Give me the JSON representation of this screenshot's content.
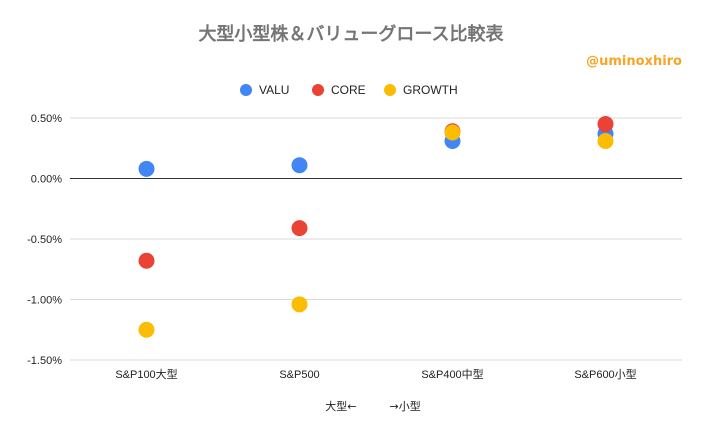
{
  "chart_data": {
    "type": "scatter",
    "title": "大型小型株＆バリューグロース比較表",
    "watermark": "@uminoxhiro",
    "categories": [
      "S&P100大型",
      "S&P500",
      "S&P400中型",
      "S&P600小型"
    ],
    "xlabel": "大型←　　　→小型",
    "ylabel": "",
    "ylim": [
      -1.5,
      0.5
    ],
    "yticks": [
      "0.50%",
      "0.00%",
      "-0.50%",
      "-1.00%",
      "-1.50%"
    ],
    "ytick_values": [
      0.5,
      0.0,
      -0.5,
      -1.0,
      -1.5
    ],
    "legend_position": "top",
    "grid": true,
    "series": [
      {
        "name": "VALU",
        "color": "#4285f4",
        "values": [
          0.08,
          0.11,
          0.31,
          0.37
        ]
      },
      {
        "name": "CORE",
        "color": "#ea4335",
        "values": [
          -0.68,
          -0.41,
          0.39,
          0.45
        ]
      },
      {
        "name": "GROWTH",
        "color": "#fbbc04",
        "values": [
          -1.25,
          -1.04,
          0.38,
          0.31
        ]
      }
    ]
  }
}
